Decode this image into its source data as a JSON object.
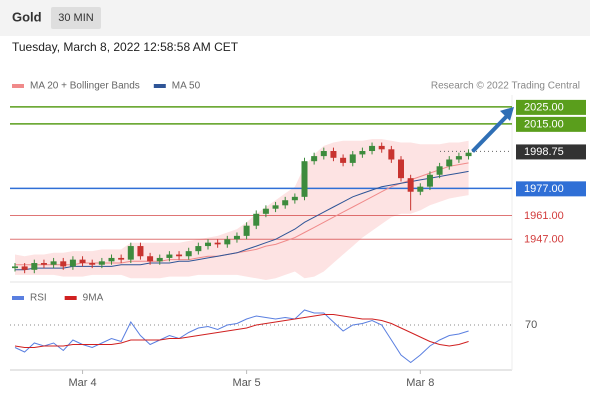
{
  "header": {
    "symbol": "Gold",
    "timeframe": "30 MIN"
  },
  "chart_data": {
    "type": "candlestick",
    "subtitle": "Tuesday, March 8, 2022 12:58:58 AM CET",
    "source": "Research © 2022 Trading Central",
    "categories": [
      null,
      null,
      null,
      null,
      null,
      null,
      null,
      "Mar 4",
      null,
      null,
      null,
      null,
      null,
      null,
      null,
      null,
      null,
      null,
      null,
      null,
      null,
      null,
      null,
      null,
      "Mar 5",
      null,
      null,
      null,
      null,
      null,
      null,
      null,
      null,
      null,
      null,
      null,
      null,
      null,
      null,
      null,
      null,
      null,
      "Mar 8",
      null,
      null,
      null,
      null,
      null
    ],
    "open": [
      1930,
      1931,
      1929,
      1933,
      1932,
      1934,
      1931,
      1935,
      1933,
      1932,
      1934,
      1936,
      1935,
      1943,
      1937,
      1934,
      1936,
      1938,
      1937,
      1940,
      1943,
      1945,
      1944,
      1947,
      1949,
      1955,
      1962,
      1965,
      1967,
      1970,
      1972,
      1993,
      1996,
      1999,
      1995,
      1992,
      1997,
      1999,
      2002,
      2000,
      1994,
      1983,
      1975,
      1978,
      1985,
      1990,
      1994,
      1996
    ],
    "high": [
      1933,
      1933,
      1935,
      1935,
      1936,
      1936,
      1937,
      1937,
      1935,
      1936,
      1938,
      1938,
      1945,
      1945,
      1939,
      1938,
      1940,
      1940,
      1942,
      1945,
      1947,
      1947,
      1949,
      1951,
      1957,
      1964,
      1967,
      1969,
      1972,
      1974,
      1995,
      1998,
      2001,
      2001,
      1997,
      1999,
      2001,
      2004,
      2004,
      2002,
      1996,
      1985,
      1980,
      1987,
      1992,
      1996,
      1998,
      2000
    ],
    "low": [
      1928,
      1927,
      1927,
      1930,
      1930,
      1929,
      1929,
      1931,
      1930,
      1930,
      1932,
      1933,
      1933,
      1935,
      1932,
      1932,
      1934,
      1935,
      1935,
      1938,
      1941,
      1942,
      1942,
      1945,
      1947,
      1953,
      1960,
      1963,
      1965,
      1968,
      1970,
      1991,
      1994,
      1993,
      1990,
      1990,
      1995,
      1997,
      1998,
      1992,
      1981,
      1964,
      1973,
      1976,
      1983,
      1988,
      1992,
      1994
    ],
    "close": [
      1931,
      1929,
      1933,
      1932,
      1934,
      1931,
      1935,
      1933,
      1932,
      1934,
      1936,
      1935,
      1943,
      1937,
      1934,
      1936,
      1938,
      1937,
      1940,
      1943,
      1945,
      1944,
      1947,
      1949,
      1955,
      1962,
      1965,
      1967,
      1970,
      1972,
      1993,
      1996,
      1999,
      1995,
      1992,
      1997,
      1999,
      2002,
      2000,
      1994,
      1983,
      1975,
      1978,
      1985,
      1990,
      1994,
      1996,
      1998
    ],
    "up_color": "#3d8b3d",
    "down_color": "#c8332f",
    "ylim": [
      1923,
      2032
    ],
    "series": [
      {
        "name": "MA 20 + Bollinger Bands",
        "color": "#f08a8a",
        "band_color": "#fde3e3",
        "values": [
          1932,
          1932,
          1932,
          1932,
          1932,
          1932,
          1932,
          1933,
          1933,
          1933,
          1933,
          1933,
          1934,
          1934,
          1934,
          1934,
          1935,
          1935,
          1935,
          1936,
          1937,
          1937,
          1938,
          1939,
          1940,
          1941,
          1943,
          1944,
          1946,
          1948,
          1951,
          1954,
          1957,
          1960,
          1963,
          1966,
          1969,
          1972,
          1975,
          1978,
          1980,
          1982,
          1984,
          1986,
          1988,
          1990,
          1991,
          1992
        ],
        "upper": [
          1938,
          1937,
          1938,
          1938,
          1939,
          1939,
          1940,
          1940,
          1940,
          1941,
          1941,
          1941,
          1945,
          1945,
          1945,
          1945,
          1945,
          1945,
          1946,
          1947,
          1948,
          1949,
          1951,
          1953,
          1957,
          1962,
          1966,
          1970,
          1974,
          1978,
          1990,
          1997,
          2002,
          2004,
          2005,
          2005,
          2005,
          2006,
          2006,
          2005,
          2004,
          2004,
          2003,
          2003,
          2003,
          2004,
          2004,
          2005
        ],
        "lower": [
          1926,
          1926,
          1926,
          1926,
          1926,
          1925,
          1925,
          1925,
          1926,
          1926,
          1926,
          1926,
          1924,
          1924,
          1924,
          1924,
          1925,
          1925,
          1925,
          1926,
          1926,
          1926,
          1926,
          1926,
          1925,
          1924,
          1923,
          1924,
          1926,
          1928,
          1924,
          1925,
          1928,
          1933,
          1938,
          1943,
          1948,
          1952,
          1956,
          1960,
          1962,
          1962,
          1964,
          1967,
          1969,
          1971,
          1972,
          1973
        ]
      },
      {
        "name": "MA 50",
        "color": "#2f5597",
        "values": [
          1929,
          1929,
          1930,
          1930,
          1930,
          1930,
          1931,
          1931,
          1931,
          1931,
          1931,
          1932,
          1932,
          1932,
          1933,
          1933,
          1933,
          1934,
          1934,
          1935,
          1936,
          1937,
          1938,
          1939,
          1941,
          1943,
          1945,
          1947,
          1950,
          1953,
          1957,
          1960,
          1963,
          1966,
          1969,
          1972,
          1974,
          1976,
          1978,
          1979,
          1980,
          1981,
          1982,
          1983,
          1984,
          1985,
          1986,
          1987
        ]
      }
    ],
    "levels": [
      {
        "value": 2025,
        "label": "2025.00",
        "color": "#5a9e1c",
        "boxed": true
      },
      {
        "value": 2015,
        "label": "2015.00",
        "color": "#5a9e1c",
        "boxed": true
      },
      {
        "value": 1977,
        "label": "1977.00",
        "color": "#2f6fd6",
        "boxed": true
      },
      {
        "value": 1961,
        "label": "1961.00",
        "color": "#d23c3c",
        "boxed": false
      },
      {
        "value": 1947,
        "label": "1947.00",
        "color": "#d23c3c",
        "boxed": false
      }
    ],
    "last_price": {
      "value": 1998.75,
      "label": "1998.75",
      "color": "#333333"
    },
    "indicator": {
      "ylim": [
        40,
        80
      ],
      "yticks": [
        70
      ],
      "series": [
        {
          "name": "RSI",
          "color": "#5a7fe0",
          "values": [
            55,
            52,
            58,
            56,
            58,
            53,
            60,
            57,
            55,
            58,
            61,
            59,
            72,
            63,
            57,
            60,
            63,
            61,
            65,
            68,
            69,
            67,
            70,
            71,
            74,
            76,
            75,
            74,
            75,
            74,
            80,
            78,
            78,
            72,
            66,
            70,
            71,
            73,
            70,
            60,
            50,
            45,
            50,
            56,
            60,
            63,
            64,
            66
          ]
        },
        {
          "name": "9MA",
          "color": "#d02020",
          "values": [
            56,
            55,
            55,
            56,
            56,
            56,
            57,
            57,
            57,
            57,
            57,
            58,
            60,
            60,
            60,
            60,
            61,
            61,
            62,
            63,
            64,
            65,
            66,
            67,
            68,
            70,
            71,
            72,
            73,
            74,
            75,
            76,
            77,
            77,
            76,
            75,
            74,
            74,
            73,
            71,
            68,
            65,
            62,
            59,
            57,
            56,
            57,
            59
          ]
        }
      ]
    }
  }
}
